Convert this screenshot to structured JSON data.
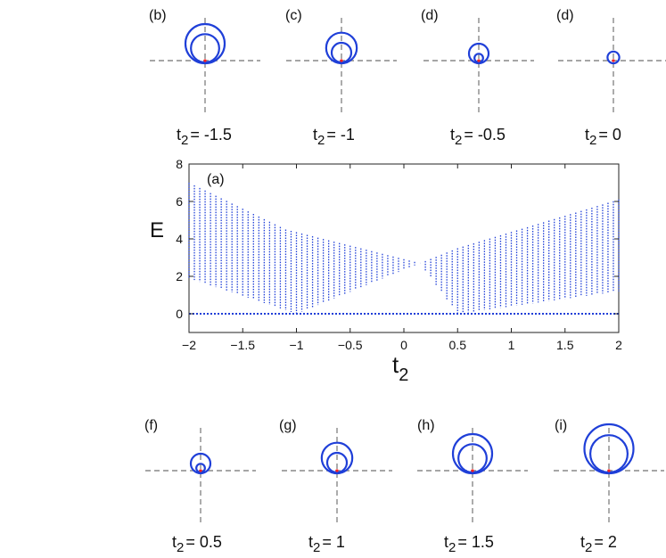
{
  "chart_data": [
    {
      "type": "line",
      "panel": "(a)",
      "title": "",
      "xlabel": "t",
      "xlabel_sub": "2",
      "ylabel": "E",
      "xlim": [
        -2,
        2
      ],
      "ylim": [
        -1,
        8
      ],
      "xticks": [
        -2,
        -1.5,
        -1,
        -0.5,
        0,
        0.5,
        1,
        1.5,
        2
      ],
      "xtick_labels": [
        "−2",
        "−1.5",
        "−1",
        "−0.5",
        "0",
        "0.5",
        "1",
        "1.5",
        "2"
      ],
      "yticks": [
        0,
        2,
        4,
        6,
        8
      ],
      "ytick_labels": [
        "0",
        "2",
        "4",
        "6",
        "8"
      ],
      "grid": false,
      "t2_range": [
        -2,
        2
      ],
      "t2_step": 0.05,
      "color": "#1f3fd8",
      "description_series": [
        {
          "name": "",
          "x": [
            -2,
            -1.1,
            0.15,
            0.5,
            2
          ],
          "y": [
            7.0,
            4.5,
            2.7,
            3.5,
            6.1
          ]
        },
        {
          "name": "",
          "x": [
            -2,
            -1.0,
            0.15,
            0.5,
            2
          ],
          "y": [
            1.9,
            0.0,
            2.7,
            0.0,
            1.2
          ]
        },
        {
          "name": "",
          "x": [
            -2,
            2
          ],
          "y": [
            0,
            0
          ]
        }
      ]
    },
    {
      "type": "scatter",
      "panel": "(b)",
      "t2": -1.5,
      "caption": "= -1.5",
      "outer_r": 1.0,
      "inner_r": 0.72
    },
    {
      "type": "scatter",
      "panel": "(c)",
      "t2": -1,
      "caption": "= -1",
      "outer_r": 0.78,
      "inner_r": 0.5
    },
    {
      "type": "scatter",
      "panel": "(d)",
      "t2": -0.5,
      "caption": "= -0.5",
      "outer_r": 0.5,
      "inner_r": 0.22
    },
    {
      "type": "scatter",
      "panel": "(d)",
      "t2": 0,
      "caption": "= 0",
      "outer_r": 0.3,
      "inner_r": 0
    },
    {
      "type": "scatter",
      "panel": "(f)",
      "t2": 0.5,
      "caption": "= 0.5",
      "outer_r": 0.5,
      "inner_r": 0.22
    },
    {
      "type": "scatter",
      "panel": "(g)",
      "t2": 1,
      "caption": "= 1",
      "outer_r": 0.78,
      "inner_r": 0.5
    },
    {
      "type": "scatter",
      "panel": "(h)",
      "t2": 1.5,
      "caption": "= 1.5",
      "outer_r": 1.0,
      "inner_r": 0.72
    },
    {
      "type": "scatter",
      "panel": "(i)",
      "t2": 2,
      "caption": "= 2",
      "outer_r": 1.25,
      "inner_r": 0.95
    }
  ],
  "caption_var": "t",
  "caption_sub": "2",
  "colors": {
    "curve": "#1f3fd8",
    "origin": "#ff2020",
    "axis": "#888888"
  }
}
